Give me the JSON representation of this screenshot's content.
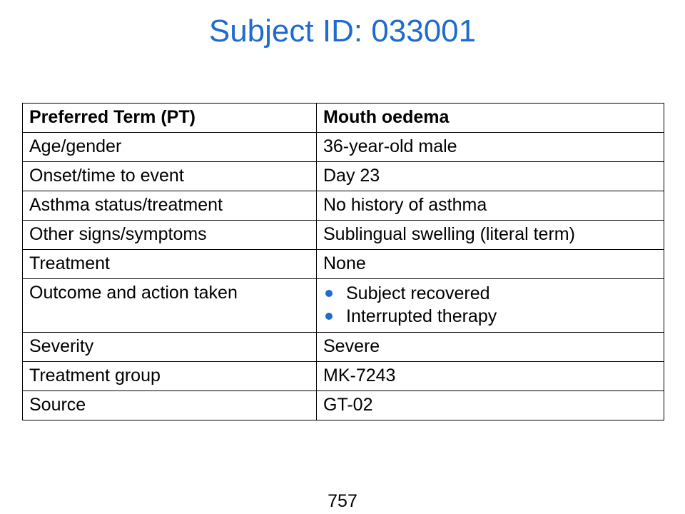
{
  "title": "Subject ID: 033001",
  "table": {
    "header": {
      "label": "Preferred Term (PT)",
      "value": "Mouth oedema"
    },
    "rows": [
      {
        "label": "Age/gender",
        "value": "36-year-old male"
      },
      {
        "label": "Onset/time to event",
        "value": "Day 23"
      },
      {
        "label": "Asthma status/treatment",
        "value": "No history of asthma"
      },
      {
        "label": "Other signs/symptoms",
        "value": "Sublingual swelling (literal term)"
      },
      {
        "label": "Treatment",
        "value": "None"
      },
      {
        "label": "Outcome and action taken",
        "bullets": [
          "Subject recovered",
          "Interrupted therapy"
        ]
      },
      {
        "label": "Severity",
        "value": "Severe"
      },
      {
        "label": "Treatment group",
        "value": "MK-7243"
      },
      {
        "label": "Source",
        "value": "GT-02"
      }
    ]
  },
  "page_number": "757",
  "colors": {
    "title": "#1f6bcf",
    "bullet": "#1f6bcf",
    "border": "#000000"
  }
}
